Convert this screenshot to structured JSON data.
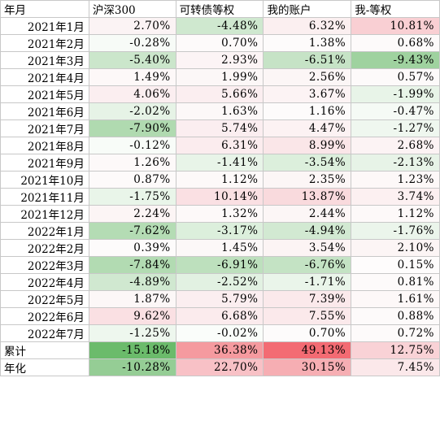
{
  "headers": [
    "年月",
    "沪深300",
    "可转债等权",
    "我的账户",
    "我-等权"
  ],
  "rows": [
    {
      "label": "2021年1月",
      "cells": [
        {
          "v": "2.70%",
          "c": "#fbf3f4"
        },
        {
          "v": "-4.48%",
          "c": "#cfe8cf"
        },
        {
          "v": "6.32%",
          "c": "#fbeff0"
        },
        {
          "v": "10.81%",
          "c": "#f9cfd3"
        }
      ]
    },
    {
      "label": "2021年2月",
      "cells": [
        {
          "v": "-0.28%",
          "c": "#f7fbf7"
        },
        {
          "v": "0.70%",
          "c": "#fdfafa"
        },
        {
          "v": "1.38%",
          "c": "#fdfbfb"
        },
        {
          "v": "0.68%",
          "c": "#fdfafa"
        }
      ]
    },
    {
      "label": "2021年3月",
      "cells": [
        {
          "v": "-5.40%",
          "c": "#cbe6cb"
        },
        {
          "v": "2.93%",
          "c": "#fcf4f5"
        },
        {
          "v": "-6.51%",
          "c": "#c6e3c6"
        },
        {
          "v": "-9.43%",
          "c": "#9fd29f"
        }
      ]
    },
    {
      "label": "2021年4月",
      "cells": [
        {
          "v": "1.49%",
          "c": "#fdf8f8"
        },
        {
          "v": "1.99%",
          "c": "#fcf7f7"
        },
        {
          "v": "2.56%",
          "c": "#fcf6f6"
        },
        {
          "v": "0.57%",
          "c": "#fdfafa"
        }
      ]
    },
    {
      "label": "2021年5月",
      "cells": [
        {
          "v": "4.06%",
          "c": "#fbeef0"
        },
        {
          "v": "5.66%",
          "c": "#fbeef0"
        },
        {
          "v": "3.67%",
          "c": "#fcf3f4"
        },
        {
          "v": "-1.99%",
          "c": "#e8f4e8"
        }
      ]
    },
    {
      "label": "2021年6月",
      "cells": [
        {
          "v": "-2.02%",
          "c": "#e6f3e6"
        },
        {
          "v": "1.63%",
          "c": "#fcf8f8"
        },
        {
          "v": "1.16%",
          "c": "#fdfbfb"
        },
        {
          "v": "-0.47%",
          "c": "#f5faf5"
        }
      ]
    },
    {
      "label": "2021年7月",
      "cells": [
        {
          "v": "-7.90%",
          "c": "#b0dab0"
        },
        {
          "v": "5.74%",
          "c": "#fbeef0"
        },
        {
          "v": "4.47%",
          "c": "#fcf2f3"
        },
        {
          "v": "-1.27%",
          "c": "#eff7ef"
        }
      ]
    },
    {
      "label": "2021年8月",
      "cells": [
        {
          "v": "-0.12%",
          "c": "#f8fcf8"
        },
        {
          "v": "6.31%",
          "c": "#fbecee"
        },
        {
          "v": "8.99%",
          "c": "#fae6e8"
        },
        {
          "v": "2.68%",
          "c": "#fcf3f4"
        }
      ]
    },
    {
      "label": "2021年9月",
      "cells": [
        {
          "v": "1.26%",
          "c": "#fdf9f9"
        },
        {
          "v": "-1.41%",
          "c": "#e8f4e8"
        },
        {
          "v": "-3.54%",
          "c": "#dcefdc"
        },
        {
          "v": "-2.13%",
          "c": "#e7f3e7"
        }
      ]
    },
    {
      "label": "2021年10月",
      "cells": [
        {
          "v": "0.87%",
          "c": "#fdfafa"
        },
        {
          "v": "1.12%",
          "c": "#fdf9f9"
        },
        {
          "v": "2.35%",
          "c": "#fcf6f6"
        },
        {
          "v": "1.23%",
          "c": "#fdf8f8"
        }
      ]
    },
    {
      "label": "2021年11月",
      "cells": [
        {
          "v": "-1.75%",
          "c": "#e9f5e9"
        },
        {
          "v": "10.14%",
          "c": "#fae0e3"
        },
        {
          "v": "13.87%",
          "c": "#f9dadd"
        },
        {
          "v": "3.74%",
          "c": "#fcf0f1"
        }
      ]
    },
    {
      "label": "2021年12月",
      "cells": [
        {
          "v": "2.24%",
          "c": "#fcf5f5"
        },
        {
          "v": "1.32%",
          "c": "#fdf9f9"
        },
        {
          "v": "2.44%",
          "c": "#fcf6f6"
        },
        {
          "v": "1.12%",
          "c": "#fdf9f9"
        }
      ]
    },
    {
      "label": "2022年1月",
      "cells": [
        {
          "v": "-7.62%",
          "c": "#b4dcb4"
        },
        {
          "v": "-3.17%",
          "c": "#dcefdc"
        },
        {
          "v": "-4.94%",
          "c": "#d2e9d2"
        },
        {
          "v": "-1.76%",
          "c": "#ebf5eb"
        }
      ]
    },
    {
      "label": "2022年2月",
      "cells": [
        {
          "v": "0.39%",
          "c": "#fdfbfb"
        },
        {
          "v": "1.45%",
          "c": "#fcf8f8"
        },
        {
          "v": "3.54%",
          "c": "#fcf4f4"
        },
        {
          "v": "2.10%",
          "c": "#fcf5f5"
        }
      ]
    },
    {
      "label": "2022年3月",
      "cells": [
        {
          "v": "-7.84%",
          "c": "#b2dbb2"
        },
        {
          "v": "-6.91%",
          "c": "#bde0bd"
        },
        {
          "v": "-6.76%",
          "c": "#c4e3c4"
        },
        {
          "v": "0.15%",
          "c": "#fefcfc"
        }
      ]
    },
    {
      "label": "2022年4月",
      "cells": [
        {
          "v": "-4.89%",
          "c": "#d0e8d0"
        },
        {
          "v": "-2.52%",
          "c": "#e2f1e2"
        },
        {
          "v": "-1.71%",
          "c": "#eaf5ea"
        },
        {
          "v": "0.81%",
          "c": "#fdfafa"
        }
      ]
    },
    {
      "label": "2022年5月",
      "cells": [
        {
          "v": "1.87%",
          "c": "#fcf7f7"
        },
        {
          "v": "5.79%",
          "c": "#fbeef0"
        },
        {
          "v": "7.39%",
          "c": "#fbe9eb"
        },
        {
          "v": "1.61%",
          "c": "#fdf8f8"
        }
      ]
    },
    {
      "label": "2022年6月",
      "cells": [
        {
          "v": "9.62%",
          "c": "#fae0e3"
        },
        {
          "v": "6.68%",
          "c": "#fbebed"
        },
        {
          "v": "7.55%",
          "c": "#fbe9eb"
        },
        {
          "v": "0.88%",
          "c": "#fdfafa"
        }
      ]
    },
    {
      "label": "2022年7月",
      "cells": [
        {
          "v": "-1.25%",
          "c": "#eef7ee"
        },
        {
          "v": "-0.02%",
          "c": "#fafdfa"
        },
        {
          "v": "0.70%",
          "c": "#fdfbfb"
        },
        {
          "v": "0.72%",
          "c": "#fdfafa"
        }
      ]
    }
  ],
  "summary": [
    {
      "label": "累计",
      "cells": [
        {
          "v": "-15.18%",
          "c": "#6bbb6b"
        },
        {
          "v": "36.38%",
          "c": "#f59a9f"
        },
        {
          "v": "49.13%",
          "c": "#f36b73"
        },
        {
          "v": "12.75%",
          "c": "#f9d2d6"
        }
      ]
    },
    {
      "label": "年化",
      "cells": [
        {
          "v": "-10.28%",
          "c": "#95cd95"
        },
        {
          "v": "22.70%",
          "c": "#f8c1c6"
        },
        {
          "v": "30.15%",
          "c": "#f6aeb3"
        },
        {
          "v": "7.45%",
          "c": "#fbe8ea"
        }
      ]
    }
  ]
}
